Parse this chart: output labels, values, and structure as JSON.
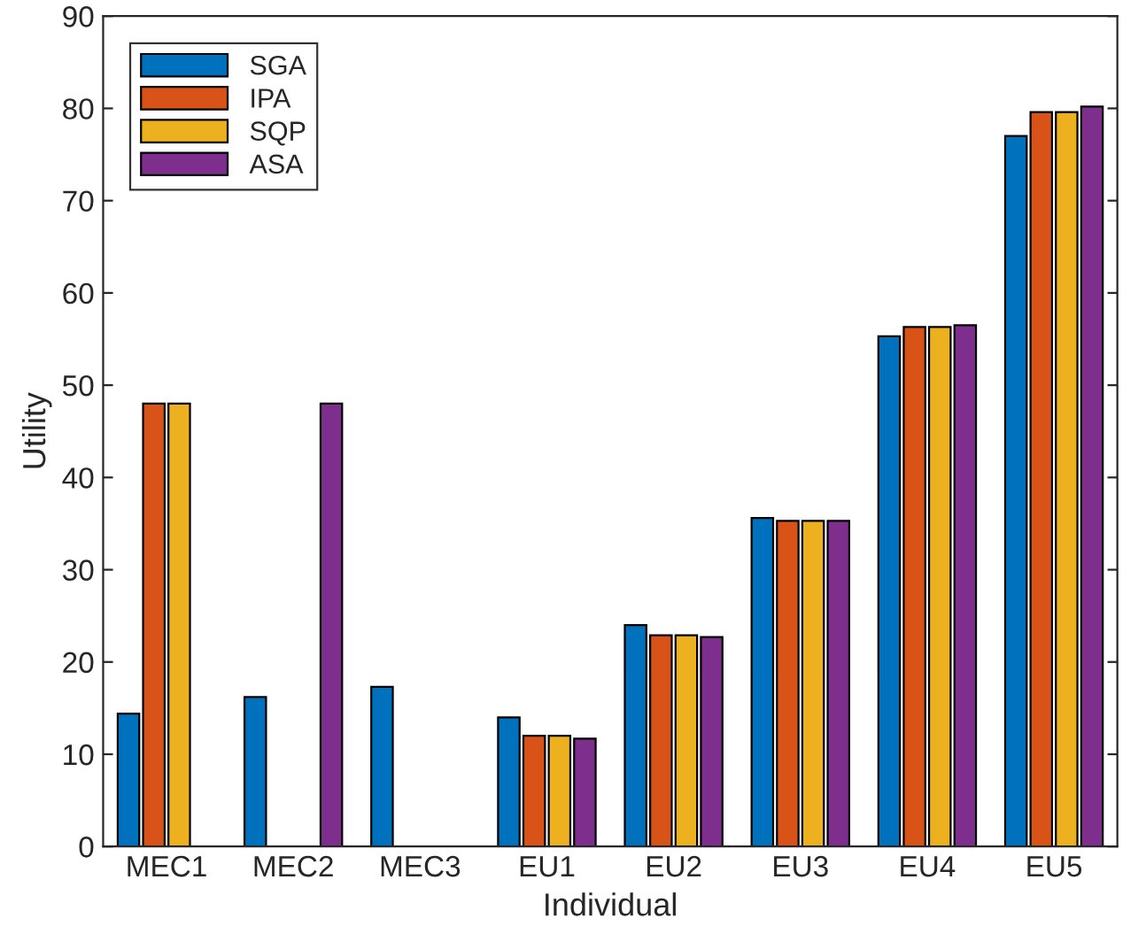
{
  "chart_data": {
    "type": "bar",
    "xlabel": "Individual",
    "ylabel": "Utility",
    "categories": [
      "MEC1",
      "MEC2",
      "MEC3",
      "EU1",
      "EU2",
      "EU3",
      "EU4",
      "EU5"
    ],
    "series": [
      {
        "name": "SGA",
        "color": "#0072bd",
        "values": [
          14.4,
          16.2,
          17.3,
          14.0,
          24.0,
          35.6,
          55.3,
          77.0
        ]
      },
      {
        "name": "IPA",
        "color": "#d95319",
        "values": [
          48.0,
          null,
          null,
          12.0,
          22.9,
          35.3,
          56.3,
          79.6
        ]
      },
      {
        "name": "SQP",
        "color": "#edb120",
        "values": [
          48.0,
          null,
          null,
          12.0,
          22.9,
          35.3,
          56.3,
          79.6
        ]
      },
      {
        "name": "ASA",
        "color": "#7e2f8e",
        "values": [
          null,
          48.0,
          null,
          11.7,
          22.7,
          35.3,
          56.5,
          80.2
        ]
      }
    ],
    "ylim": [
      0,
      90
    ],
    "yticks": [
      0,
      10,
      20,
      30,
      40,
      50,
      60,
      70,
      80,
      90
    ],
    "grid": false,
    "legend": "top left"
  }
}
